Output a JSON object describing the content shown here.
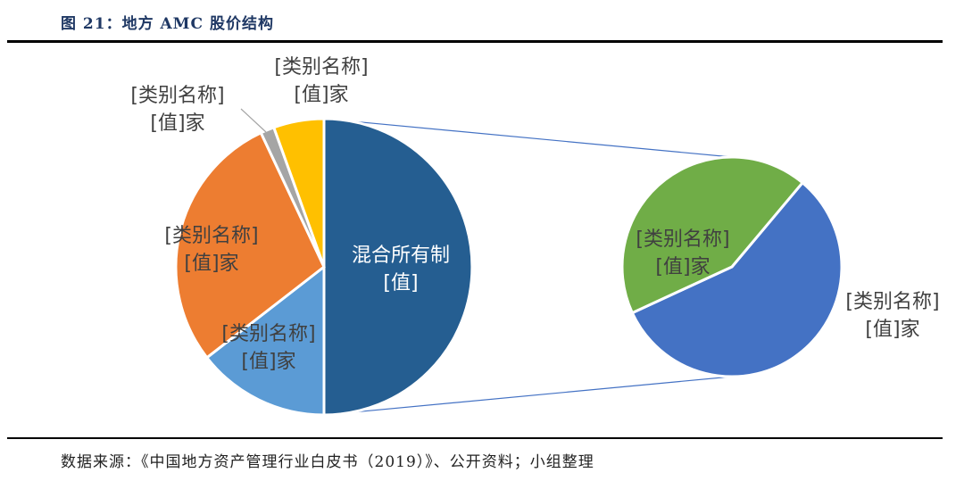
{
  "figure_title": "图 21：地方 AMC 股价结构",
  "source": "数据来源：《中国地方资产管理行业白皮书（2019）》、公开资料；小组整理",
  "colors": {
    "dark_blue": "#255e91",
    "light_blue": "#5b9bd5",
    "orange": "#ed7d31",
    "gray": "#a5a5a5",
    "gold": "#ffc000",
    "mid_blue": "#4472c4",
    "green": "#70ad47",
    "connector": "#4472c4",
    "title": "#1f3864"
  },
  "chart_data": {
    "type": "pie",
    "subtype": "pie-of-pie",
    "title": "图 21：地方 AMC 股价结构",
    "main_pie": {
      "slices": [
        {
          "category": "混合所有制",
          "value_label": "[值]",
          "value": 50,
          "color": "#255e91"
        },
        {
          "category": "[类别名称]",
          "value_label": "[值]家",
          "value": 14.5,
          "color": "#5b9bd5"
        },
        {
          "category": "[类别名称]",
          "value_label": "[值]家",
          "value": 28.5,
          "color": "#ed7d31"
        },
        {
          "category": "[类别名称]",
          "value_label": "[值]家",
          "value": 1.5,
          "color": "#a5a5a5"
        },
        {
          "category": "[类别名称]",
          "value_label": "[值]家",
          "value": 5.5,
          "color": "#ffc000"
        }
      ]
    },
    "secondary_pie": {
      "slices": [
        {
          "category": "[类别名称]",
          "value_label": "[值]家",
          "value": 57,
          "color": "#4472c4"
        },
        {
          "category": "[类别名称]",
          "value_label": "[值]家",
          "value": 43,
          "color": "#70ad47"
        }
      ]
    }
  }
}
